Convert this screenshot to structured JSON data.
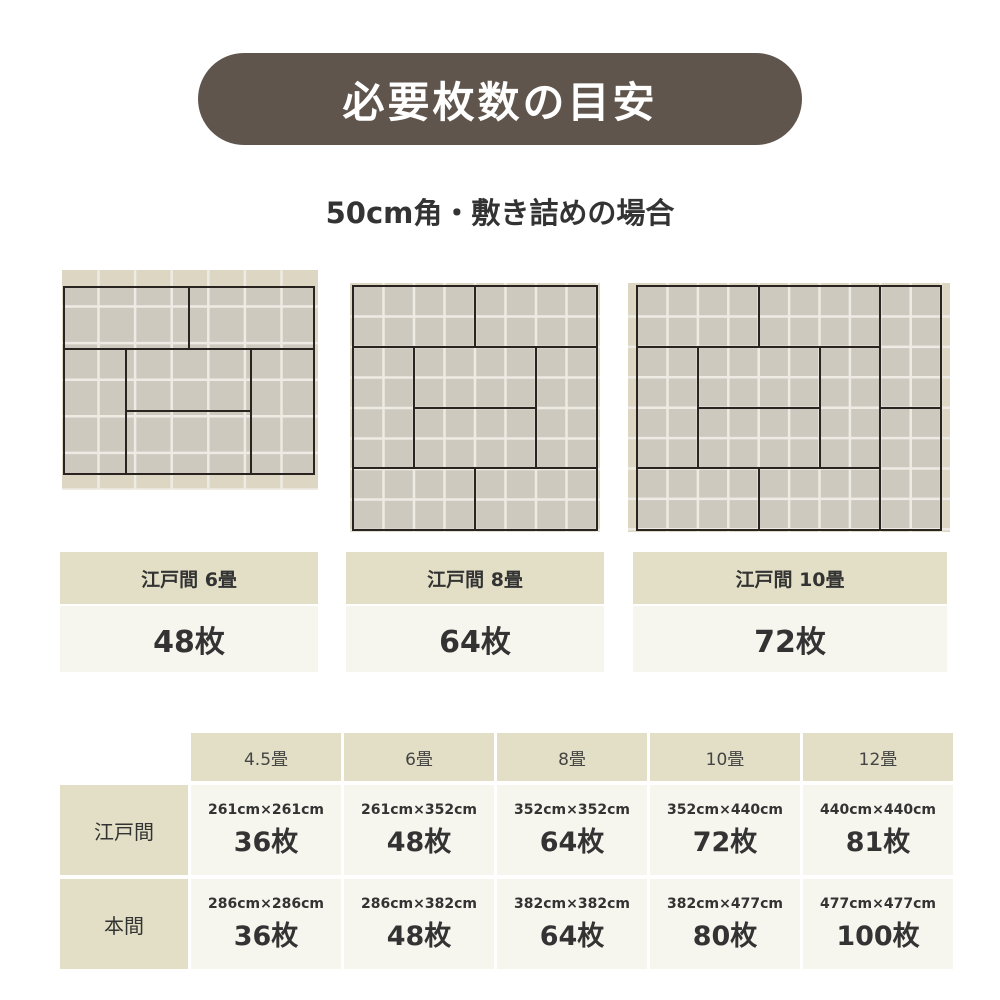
{
  "title": "必要枚数の目安",
  "subtitle": "50cm角・敷き詰めの場合",
  "colors": {
    "title_bg": "#5f554c",
    "header_bg": "#e3dfc6",
    "cell_bg": "#f6f5ee",
    "tatami": "#cdc9bf",
    "floor": "#dcd6c2"
  },
  "cards": [
    {
      "label": "江戸間 6畳",
      "count": "48枚"
    },
    {
      "label": "江戸間 8畳",
      "count": "64枚"
    },
    {
      "label": "江戸間 10畳",
      "count": "72枚"
    }
  ],
  "table": {
    "columns": [
      "4.5畳",
      "6畳",
      "8畳",
      "10畳",
      "12畳"
    ],
    "rows": [
      {
        "label": "江戸間",
        "cells": [
          {
            "size": "261cm×261cm",
            "count": "36枚"
          },
          {
            "size": "261cm×352cm",
            "count": "48枚"
          },
          {
            "size": "352cm×352cm",
            "count": "64枚"
          },
          {
            "size": "352cm×440cm",
            "count": "72枚"
          },
          {
            "size": "440cm×440cm",
            "count": "81枚"
          }
        ]
      },
      {
        "label": "本間",
        "cells": [
          {
            "size": "286cm×286cm",
            "count": "36枚"
          },
          {
            "size": "286cm×382cm",
            "count": "48枚"
          },
          {
            "size": "382cm×382cm",
            "count": "64枚"
          },
          {
            "size": "382cm×477cm",
            "count": "80枚"
          },
          {
            "size": "477cm×477cm",
            "count": "100枚"
          }
        ]
      }
    ]
  }
}
